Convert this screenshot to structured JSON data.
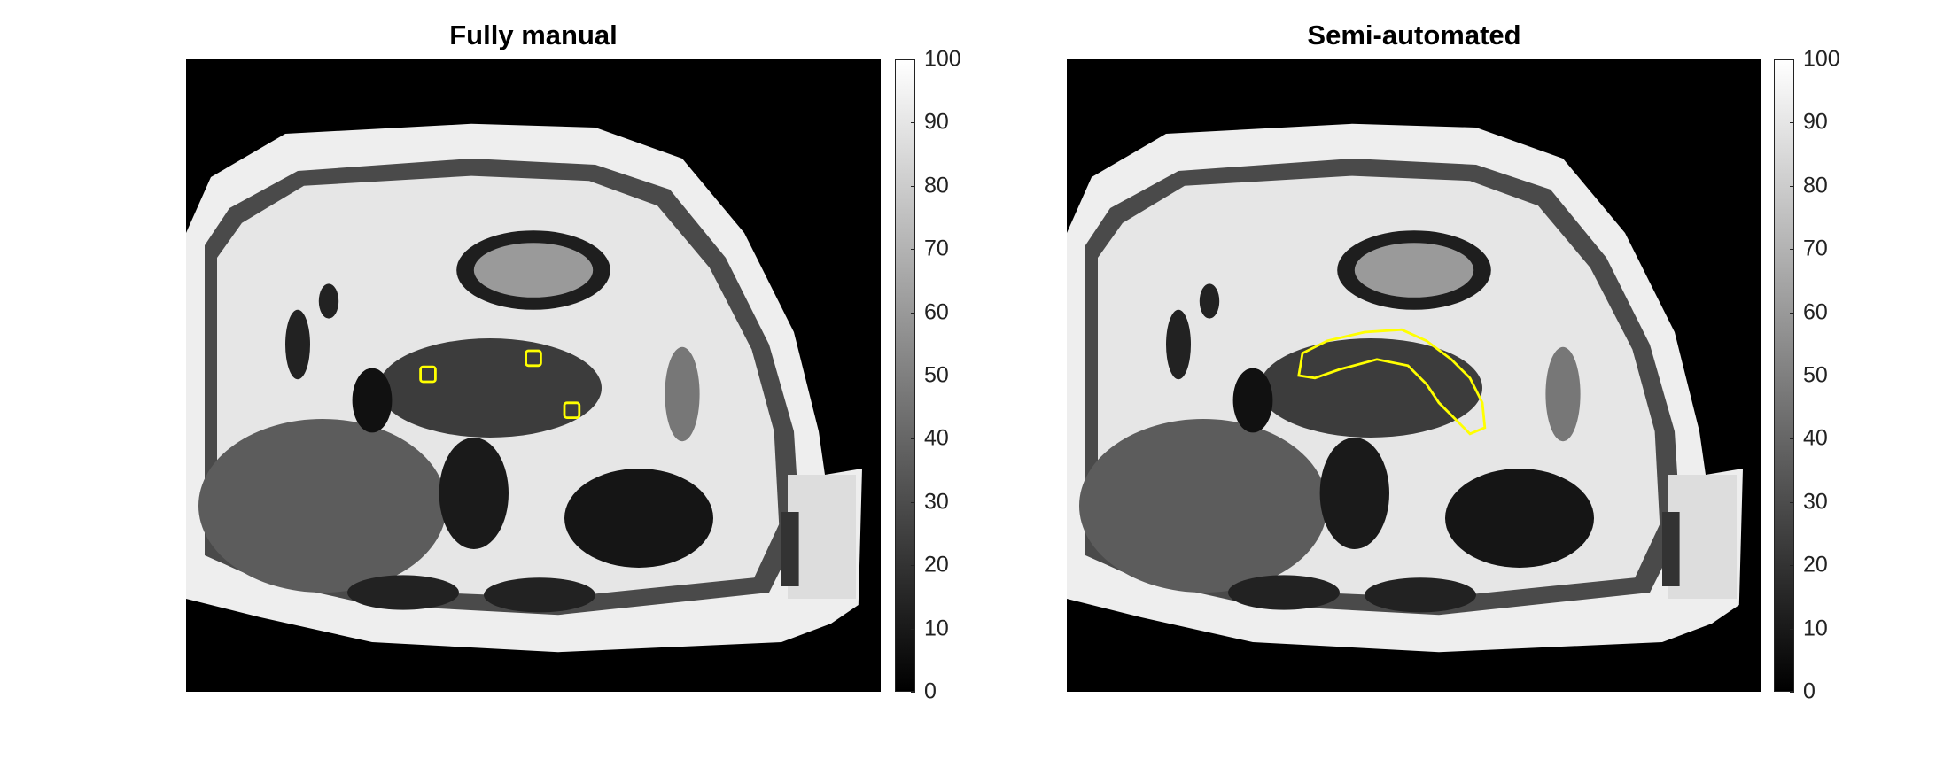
{
  "chart_data": [
    {
      "type": "heatmap",
      "title": "Fully manual",
      "colormap": "gray",
      "clim": [
        0,
        100
      ],
      "colorbar_ticks": [
        "0",
        "10",
        "20",
        "30",
        "40",
        "50",
        "60",
        "70",
        "80",
        "90",
        "100"
      ],
      "overlay_color": "#ffff00",
      "overlay": "three small square ROIs"
    },
    {
      "type": "heatmap",
      "title": "Semi-automated",
      "colormap": "gray",
      "clim": [
        0,
        100
      ],
      "colorbar_ticks": [
        "0",
        "10",
        "20",
        "30",
        "40",
        "50",
        "60",
        "70",
        "80",
        "90",
        "100"
      ],
      "overlay_color": "#ffff00",
      "overlay": "segmentation contour"
    }
  ]
}
